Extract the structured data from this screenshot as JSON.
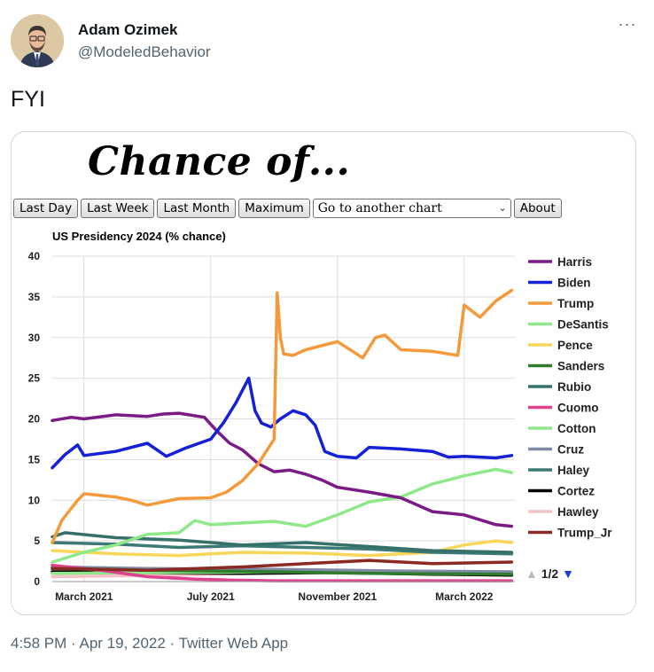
{
  "author": {
    "name": "Adam Ozimek",
    "handle": "@ModeledBehavior"
  },
  "more_icon": "···",
  "tweet": {
    "text": "FYI"
  },
  "chart_page": {
    "banner": "Chance of...",
    "buttons": [
      "Last Day",
      "Last Week",
      "Last Month",
      "Maximum"
    ],
    "select_value": "Go to another chart",
    "about_label": "About",
    "pager": {
      "up": "▲",
      "label": "1/2",
      "down": "▼"
    }
  },
  "colors": {
    "Harris": "#7b1c86",
    "Biden": "#1421d6",
    "Trump": "#f59a3b",
    "DeSantis": "#8fe88a",
    "Pence": "#f7d65a",
    "Sanders": "#2f7d2c",
    "Rubio": "#36706b",
    "Cuomo": "#e0418f",
    "Cotton": "#8fe88a",
    "Cruz": "#7d8aa3",
    "Haley": "#3c7a76",
    "Cortez": "#000000",
    "Hawley": "#f5c0c8",
    "Trump_Jr": "#8a2a24"
  },
  "chart_data": {
    "type": "line",
    "title": "US Presidency 2024 (% chance)",
    "ylim": [
      0,
      40
    ],
    "yticks": [
      0,
      5,
      10,
      15,
      20,
      25,
      30,
      35,
      40
    ],
    "x_tick_labels": [
      "March 2021",
      "July 2021",
      "November 2021",
      "March 2022"
    ],
    "x_ticks": [
      1.0,
      5.0,
      9.0,
      13.0
    ],
    "xlim": [
      0.0,
      14.6
    ],
    "grid": true,
    "legend_position": "right",
    "series": [
      {
        "name": "Harris",
        "x": [
          0.0,
          0.6,
          1.0,
          2.0,
          3.0,
          3.5,
          4.0,
          4.8,
          5.2,
          5.6,
          6.0,
          6.5,
          7.0,
          7.5,
          8.0,
          8.5,
          9.0,
          10.0,
          11.0,
          12.0,
          13.0,
          13.5,
          14.0,
          14.5
        ],
        "values": [
          19.8,
          20.2,
          20.0,
          20.5,
          20.3,
          20.6,
          20.7,
          20.2,
          18.5,
          17.0,
          16.2,
          14.5,
          13.5,
          13.7,
          13.2,
          12.5,
          11.6,
          11.0,
          10.3,
          8.6,
          8.2,
          7.6,
          7.0,
          6.8
        ]
      },
      {
        "name": "Biden",
        "x": [
          0.0,
          0.4,
          0.8,
          1.0,
          2.0,
          3.0,
          3.6,
          4.2,
          5.0,
          5.4,
          5.8,
          6.2,
          6.4,
          6.6,
          6.9,
          7.2,
          7.6,
          8.0,
          8.3,
          8.6,
          9.0,
          9.6,
          10.0,
          11.0,
          12.0,
          12.5,
          13.0,
          14.0,
          14.5
        ],
        "values": [
          14.0,
          15.6,
          16.8,
          15.5,
          16.0,
          17.0,
          15.4,
          16.4,
          17.5,
          19.5,
          22.0,
          25.0,
          21.0,
          19.5,
          19.0,
          20.0,
          21.0,
          20.5,
          19.2,
          16.0,
          15.4,
          15.2,
          16.5,
          16.3,
          16.0,
          15.3,
          15.4,
          15.2,
          15.5
        ]
      },
      {
        "name": "Trump",
        "x": [
          0.0,
          0.3,
          0.8,
          1.0,
          2.0,
          2.5,
          3.0,
          4.0,
          5.0,
          5.5,
          6.0,
          6.5,
          7.0,
          7.1,
          7.2,
          7.3,
          7.6,
          8.0,
          9.0,
          9.8,
          10.2,
          10.5,
          11.0,
          12.0,
          12.8,
          13.0,
          13.5,
          14.0,
          14.5
        ],
        "values": [
          4.8,
          7.5,
          10.0,
          10.8,
          10.4,
          10.0,
          9.4,
          10.2,
          10.3,
          11.0,
          12.4,
          14.5,
          17.5,
          35.5,
          30.0,
          28.0,
          27.8,
          28.5,
          29.5,
          27.5,
          30.0,
          30.3,
          28.5,
          28.3,
          27.8,
          34.0,
          32.5,
          34.5,
          35.8
        ]
      },
      {
        "name": "DeSantis",
        "x": [
          0.0,
          1.0,
          2.0,
          3.0,
          4.0,
          4.5,
          5.0,
          6.0,
          7.0,
          8.0,
          9.0,
          10.0,
          11.0,
          12.0,
          13.0,
          14.0,
          14.5
        ],
        "values": [
          2.4,
          3.6,
          4.5,
          5.8,
          6.0,
          7.5,
          7.0,
          7.2,
          7.4,
          6.8,
          8.2,
          9.8,
          10.4,
          12.0,
          13.0,
          13.8,
          13.4
        ]
      },
      {
        "name": "Pence",
        "x": [
          0.0,
          2.0,
          4.0,
          6.0,
          8.0,
          10.0,
          12.0,
          13.0,
          14.0,
          14.5
        ],
        "values": [
          3.8,
          3.4,
          3.2,
          3.6,
          3.5,
          3.2,
          3.6,
          4.5,
          5.0,
          4.8
        ]
      },
      {
        "name": "Sanders",
        "x": [
          0.0,
          3.0,
          7.0,
          10.0,
          14.5
        ],
        "values": [
          1.6,
          1.4,
          1.2,
          1.0,
          0.9
        ]
      },
      {
        "name": "Rubio",
        "x": [
          0.0,
          0.4,
          2.0,
          4.0,
          6.0,
          8.0,
          10.0,
          12.0,
          14.5
        ],
        "values": [
          5.5,
          6.0,
          5.4,
          5.1,
          4.5,
          4.8,
          4.3,
          3.8,
          3.6
        ]
      },
      {
        "name": "Cuomo",
        "x": [
          0.0,
          1.5,
          3.0,
          4.5,
          5.5,
          7.0,
          14.5
        ],
        "values": [
          2.0,
          1.4,
          0.6,
          0.3,
          0.2,
          0.1,
          0.1
        ]
      },
      {
        "name": "Cotton",
        "x": [
          0.0,
          3.0,
          7.0,
          11.0,
          14.5
        ],
        "values": [
          1.0,
          1.1,
          1.2,
          1.0,
          1.1
        ]
      },
      {
        "name": "Cruz",
        "x": [
          0.0,
          3.0,
          7.0,
          11.0,
          14.5
        ],
        "values": [
          1.8,
          1.6,
          1.5,
          1.3,
          1.2
        ]
      },
      {
        "name": "Haley",
        "x": [
          0.0,
          2.0,
          4.0,
          6.0,
          8.0,
          10.0,
          12.0,
          14.5
        ],
        "values": [
          4.8,
          4.6,
          4.2,
          4.4,
          4.2,
          4.0,
          3.6,
          3.4
        ]
      },
      {
        "name": "Cortez",
        "x": [
          0.0,
          3.0,
          6.0,
          9.0,
          12.0,
          14.5
        ],
        "values": [
          1.2,
          1.1,
          1.0,
          1.1,
          0.9,
          0.8
        ]
      },
      {
        "name": "Hawley",
        "x": [
          0.0,
          4.0,
          8.0,
          12.0,
          14.5
        ],
        "values": [
          0.6,
          0.8,
          1.2,
          0.9,
          0.8
        ]
      },
      {
        "name": "Trump_Jr",
        "x": [
          0.0,
          3.0,
          6.0,
          8.0,
          10.0,
          12.0,
          14.5
        ],
        "values": [
          1.6,
          1.4,
          1.8,
          2.2,
          2.6,
          2.2,
          2.4
        ]
      }
    ]
  },
  "meta": {
    "timestamp": "4:58 PM · Apr 19, 2022 · Twitter Web App"
  }
}
